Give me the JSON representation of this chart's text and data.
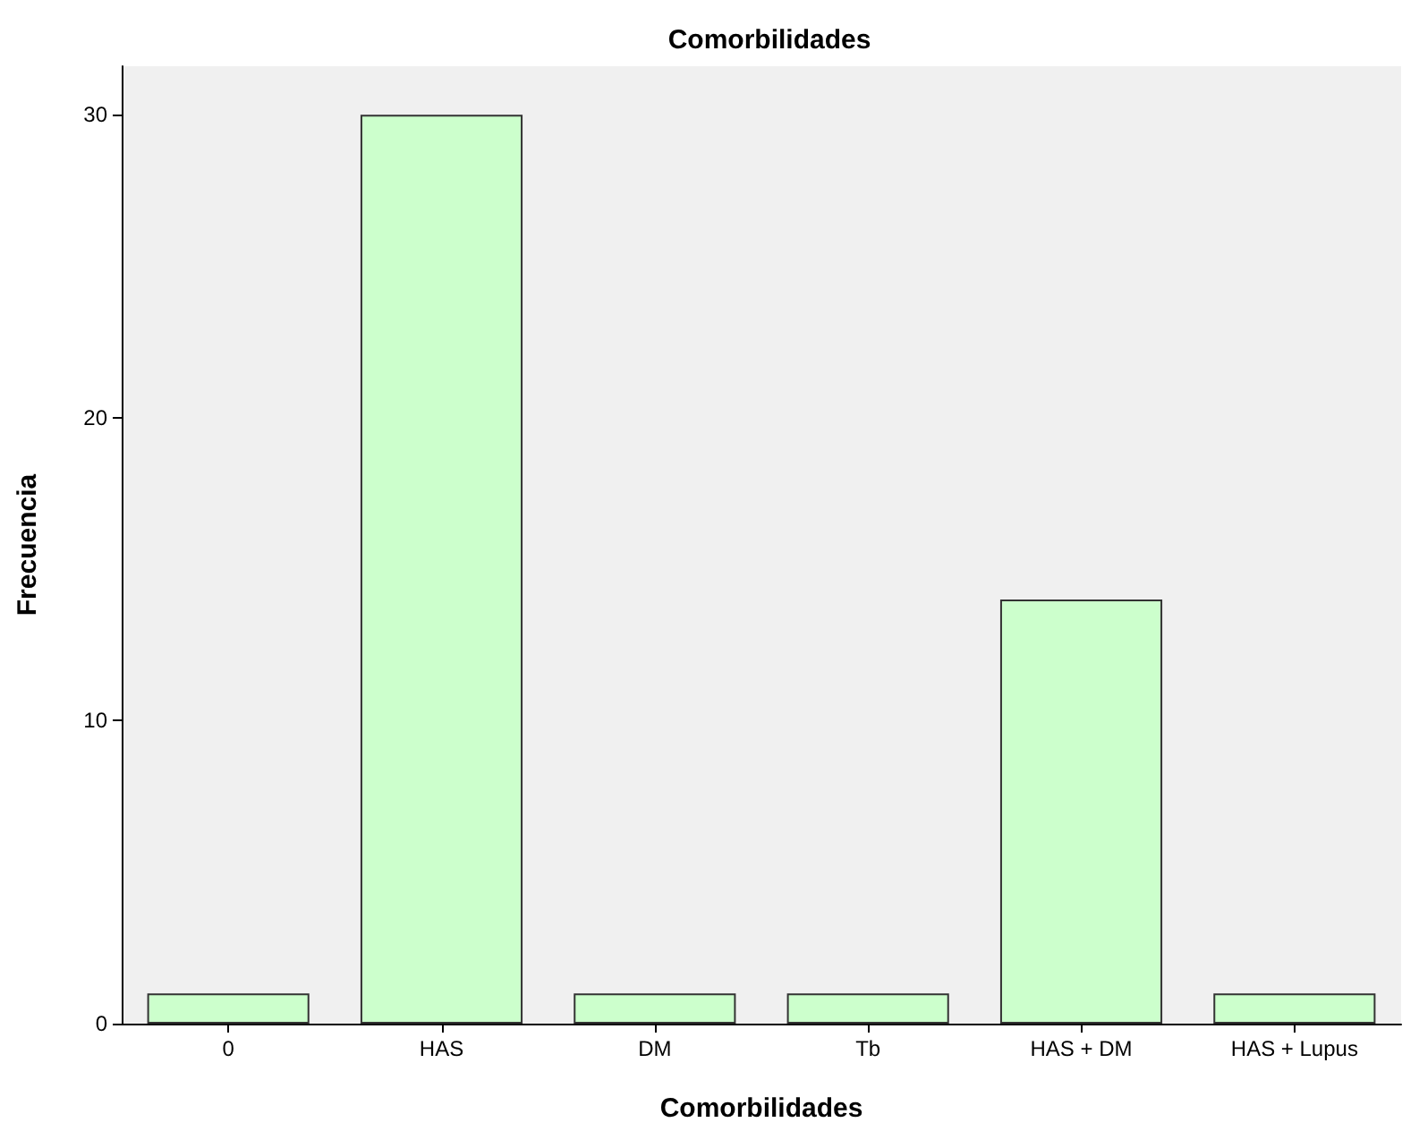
{
  "chart_data": {
    "type": "bar",
    "title": "Comorbilidades",
    "xlabel": "Comorbilidades",
    "ylabel": "Frecuencia",
    "categories": [
      "0",
      "HAS",
      "DM",
      "Tb",
      "HAS + DM",
      "HAS + Lupus"
    ],
    "values": [
      1,
      30,
      1,
      1,
      14,
      1
    ],
    "color": "#ccffcc",
    "ylim": [
      0,
      31.6
    ],
    "yticks": [
      0,
      10,
      20,
      30
    ],
    "grid": false
  }
}
